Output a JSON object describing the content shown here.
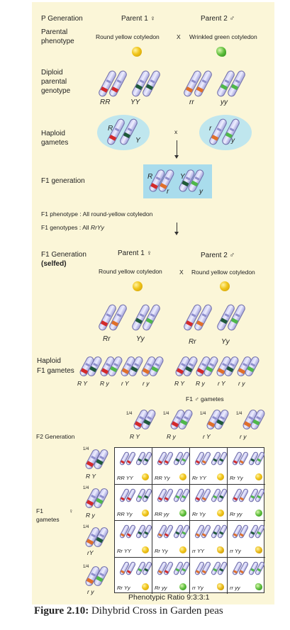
{
  "p_generation": {
    "label": "P Generation",
    "parent1": "Parent 1 ♀",
    "parent2": "Parent 2 ♂",
    "phenotype_label_line1": "Parental",
    "phenotype_label_line2": "phenotype",
    "parent1_phenotype": "Round yellow cotyledon",
    "cross": "X",
    "parent2_phenotype": "Wrinkled green cotyledon",
    "genotype_label_line1": "Diploid",
    "genotype_label_line2": "parental",
    "genotype_label_line3": "genotype",
    "parent1_genotype_a": "RR",
    "parent1_genotype_b": "YY",
    "parent2_genotype_a": "rr",
    "parent2_genotype_b": "yy",
    "gamete_label_line1": "Haploid",
    "gamete_label_line2": "gametes",
    "gamete1_R": "R",
    "gamete1_Y": "Y",
    "gamete2_r": "r",
    "gamete2_y": "y",
    "gamete_cross": "x"
  },
  "f1": {
    "label": "F1 generation",
    "R": "R",
    "r": "r",
    "Y": "Y",
    "y": "y",
    "phenotype_text": "F1 phenotype : All round-yellow cotyledon",
    "genotype_text_prefix": "F1 genotypes : All ",
    "genotype_value": "RrYy"
  },
  "f1_selfed": {
    "label_line1": "F1 Generation",
    "label_line2": "(selfed)",
    "parent1": "Parent 1 ♀",
    "parent2": "Parent 2 ♂",
    "parent1_phenotype": "Round yellow cotyledon",
    "cross": "X",
    "parent2_phenotype": "Round yellow cotyledon",
    "p1_genotype_a": "Rr",
    "p1_genotype_b": "Yy",
    "p2_genotype_a": "Rr",
    "p2_genotype_b": "Yy",
    "gamete_label_line1": "Haploid",
    "gamete_label_line2": "F1 gametes",
    "left_gametes": [
      "R Y",
      "R y",
      "r Y",
      "r y"
    ],
    "right_gametes": [
      "R Y",
      "R y",
      "r Y",
      "r y"
    ]
  },
  "f2": {
    "male_gametes_label": "F1 ♂ gametes",
    "label": "F2 Generation",
    "fraction": "1/4",
    "male_gametes": [
      "R Y",
      "R y",
      "r Y",
      "r y"
    ],
    "female_label_line1": "F1",
    "female_label_symbol": "♀",
    "female_label_line2": "gametes",
    "female_gametes": [
      "R Y",
      "R y",
      "rY",
      "r y"
    ],
    "grid": [
      [
        "RR YY",
        "RR Yy",
        "Rr YY",
        "Rr Yy"
      ],
      [
        "RR Yy",
        "RR yy",
        "Rr Yy",
        "Rr yy"
      ],
      [
        "Rr YY",
        "Rr Yy",
        "rr YY",
        "rr Yy"
      ],
      [
        "Rr Yy",
        "Rr yy",
        "rr Yy",
        "rr yy"
      ]
    ],
    "phenotypes": [
      [
        "round-yellow",
        "round-yellow",
        "round-yellow",
        "round-yellow"
      ],
      [
        "round-yellow",
        "round-green",
        "round-yellow",
        "round-green"
      ],
      [
        "round-yellow",
        "round-yellow",
        "wrinkled-yellow",
        "wrinkled-yellow"
      ],
      [
        "round-yellow",
        "round-green",
        "wrinkled-yellow",
        "wrinkled-green"
      ]
    ],
    "ratio": "Phenotypic Ratio 9:3:3:1"
  },
  "caption": {
    "prefix": "Figure 2.10:",
    "text": " Dihybrid Cross in Garden peas"
  },
  "colors": {
    "panel": "#fbf6d8",
    "allele_R": "#d42a2a",
    "allele_r": "#e0702a",
    "allele_Y": "#1f5a3a",
    "allele_y": "#4fb84a",
    "pea_yellow": "#f0c419",
    "pea_green": "#5cbd3a",
    "halo": "#bfe6ee",
    "f1_box": "#a9dcec"
  }
}
